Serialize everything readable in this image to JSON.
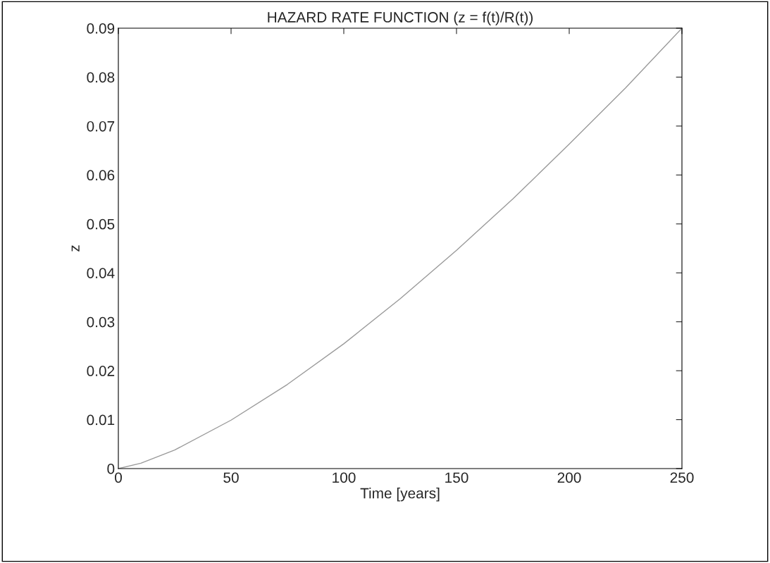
{
  "chart_data": {
    "type": "line",
    "title": "HAZARD RATE FUNCTION (z = f(t)/R(t))",
    "xlabel": "Time [years]",
    "ylabel": "z",
    "x": [
      0,
      10,
      25,
      50,
      75,
      100,
      125,
      150,
      175,
      200,
      225,
      250
    ],
    "series": [
      {
        "color": "#9a9a9a",
        "values": [
          0,
          0.0011,
          0.0038,
          0.0099,
          0.0172,
          0.0255,
          0.0347,
          0.0446,
          0.0551,
          0.0663,
          0.0778,
          0.09
        ]
      }
    ],
    "xlim": [
      0,
      250
    ],
    "xticks": [
      0,
      50,
      100,
      150,
      200,
      250
    ],
    "ylim": [
      0,
      0.09
    ],
    "yticks": [
      0,
      0.01,
      0.02,
      0.03,
      0.04,
      0.05,
      0.06,
      0.07,
      0.08,
      0.09
    ],
    "grid": false,
    "legend": false
  }
}
